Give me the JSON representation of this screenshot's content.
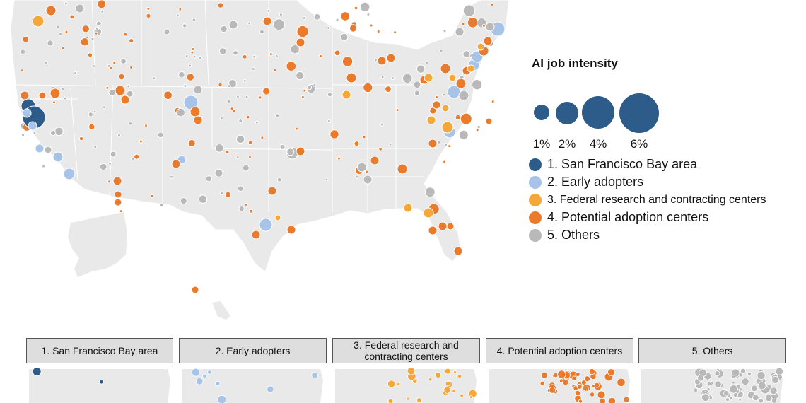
{
  "legend": {
    "title": "AI job intensity",
    "sizes": [
      {
        "label": "1%",
        "value": 1
      },
      {
        "label": "2%",
        "value": 2
      },
      {
        "label": "4%",
        "value": 4
      },
      {
        "label": "6%",
        "value": 6
      }
    ],
    "categories": [
      {
        "label": "1. San Francisco Bay area",
        "color": "#2d5b8a"
      },
      {
        "label": "2. Early adopters",
        "color": "#a7c4e8"
      },
      {
        "label": "3. Federal research and contracting centers",
        "color": "#f5a83a"
      },
      {
        "label": "4. Potential adoption centers",
        "color": "#ea7a2c"
      },
      {
        "label": "5. Others",
        "color": "#b9b9b9"
      }
    ]
  },
  "panels": [
    {
      "label": "1. San Francisco Bay area"
    },
    {
      "label": "2. Early adopters"
    },
    {
      "label": "3. Federal research and contracting centers"
    },
    {
      "label": "4. Potential adoption centers"
    },
    {
      "label": "5. Others"
    }
  ],
  "colors": {
    "land": "#e9e9e9",
    "border": "#ffffff",
    "bubble_outline": "#ffffff"
  }
}
